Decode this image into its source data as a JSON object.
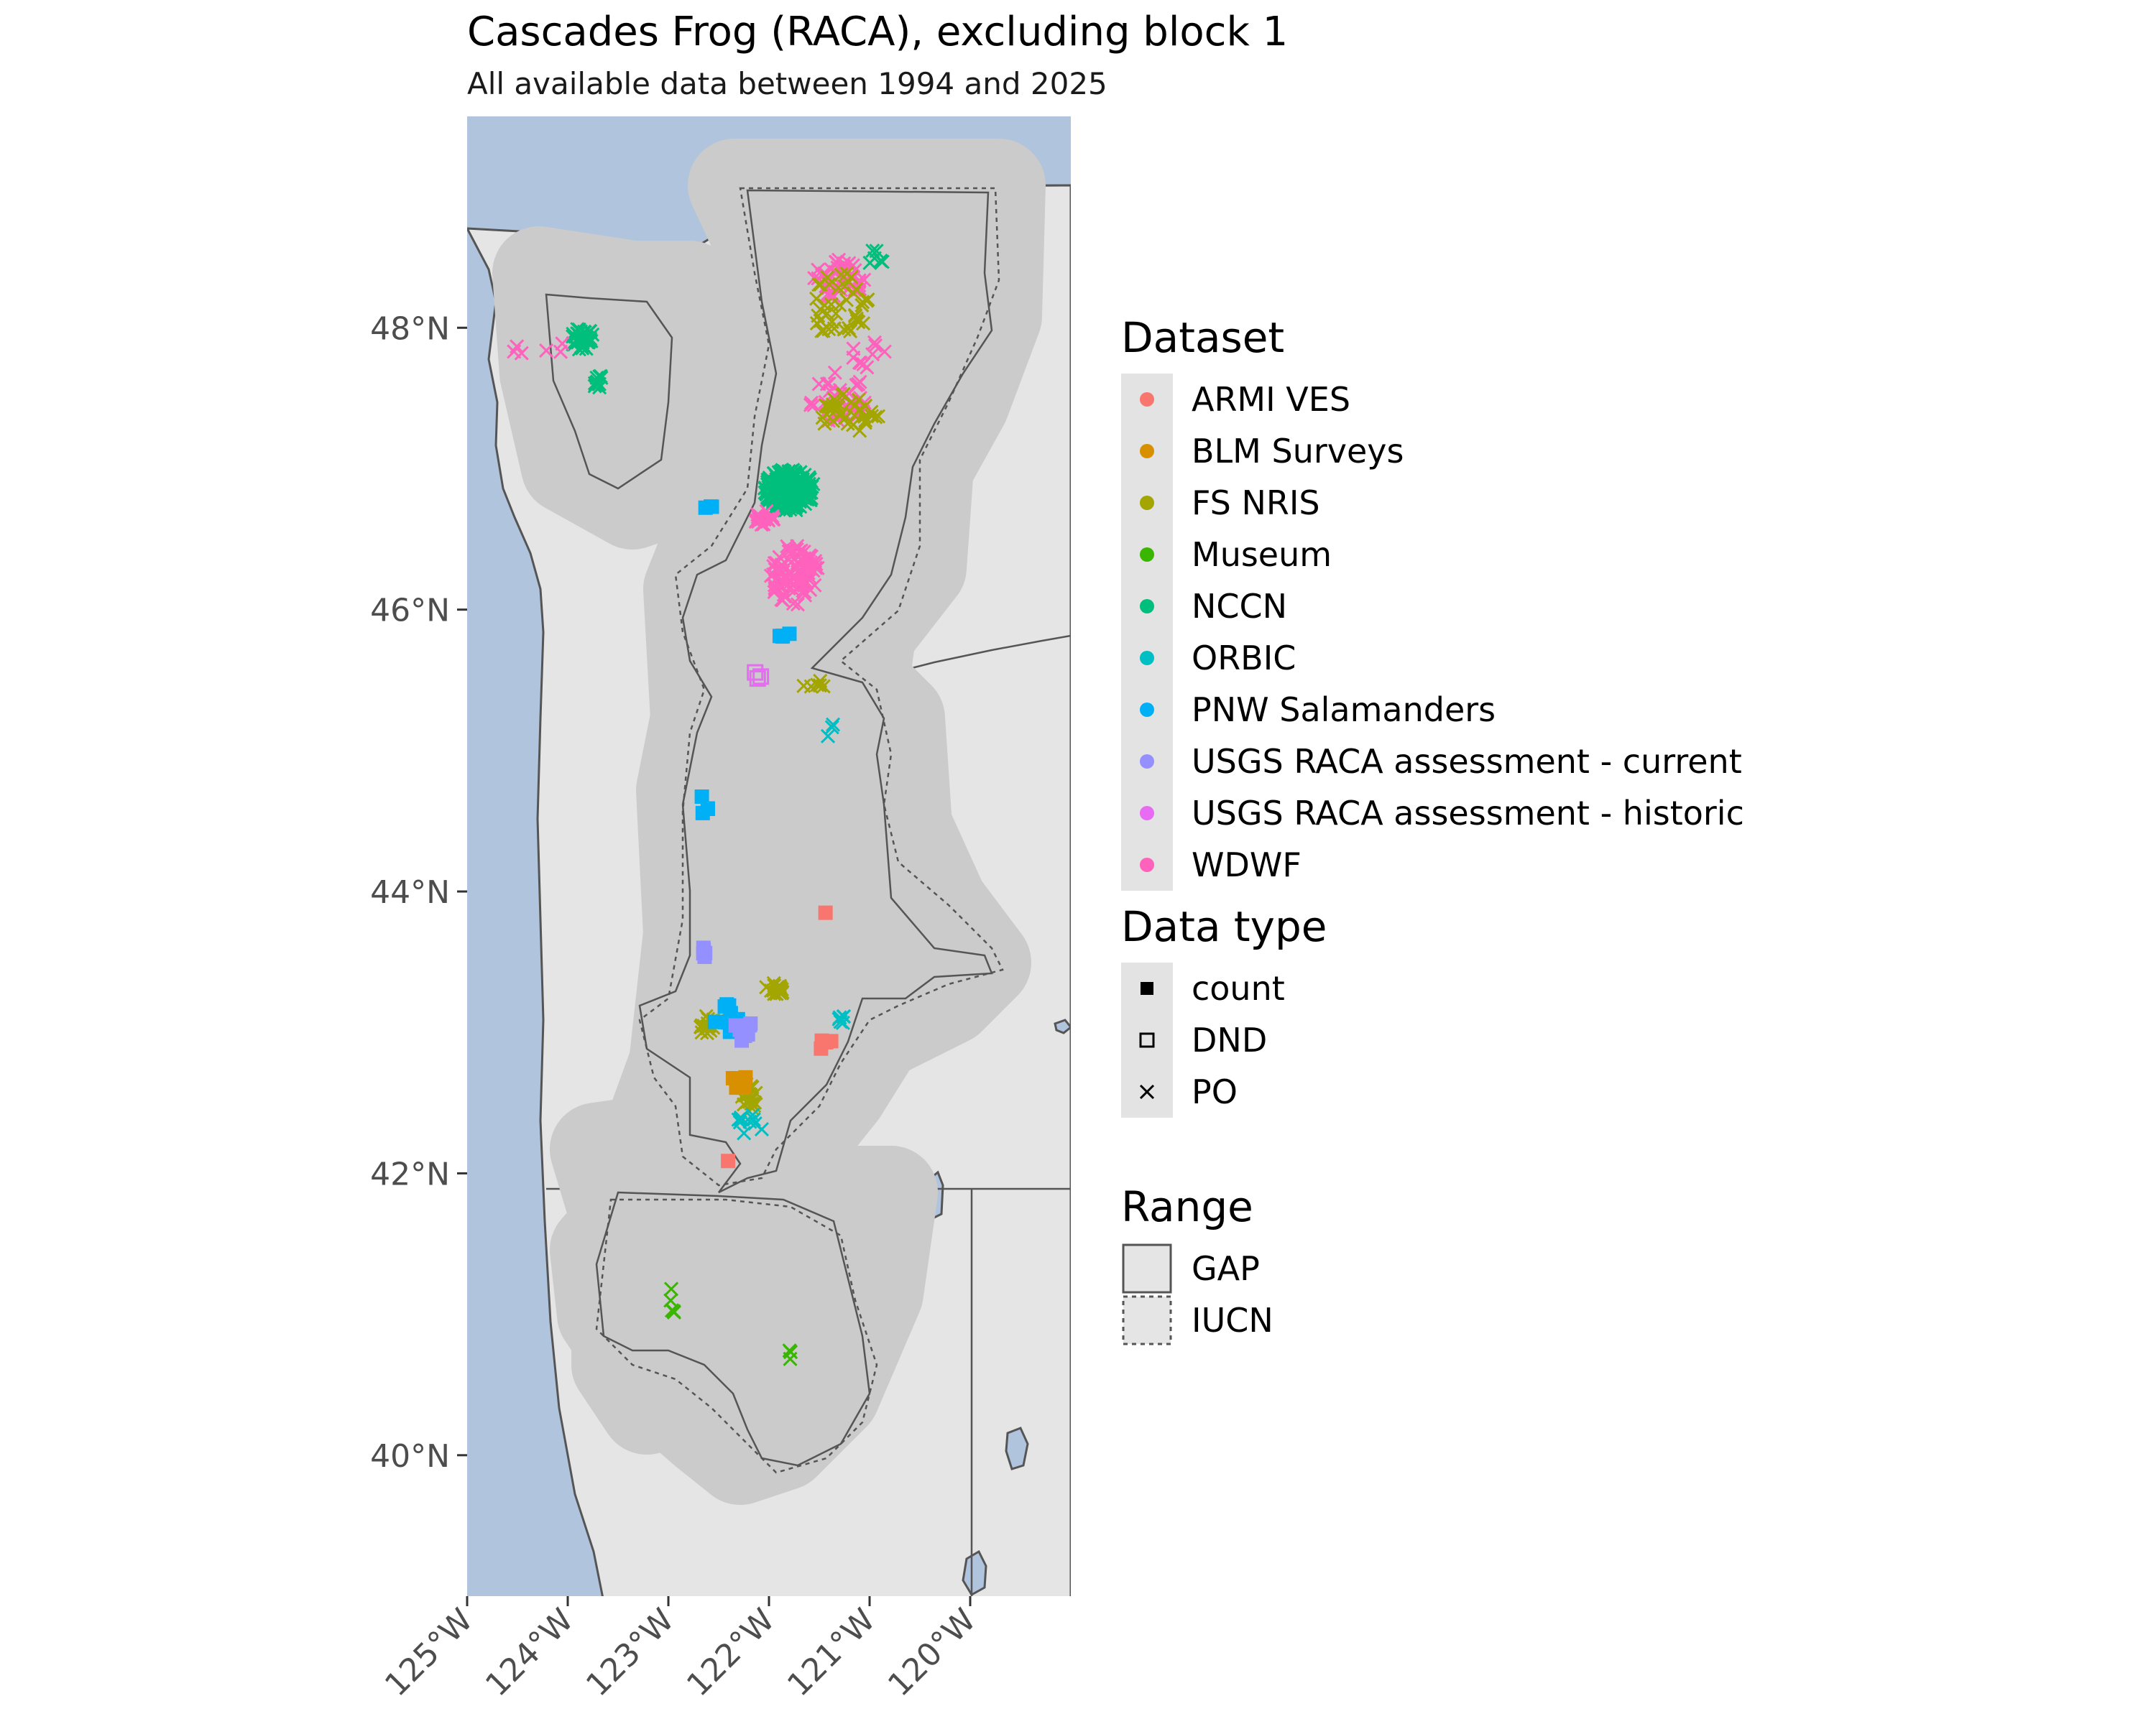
{
  "title": "Cascades Frog (RACA), excluding block 1",
  "subtitle": "All available data between 1994 and 2025",
  "colors": {
    "water": "#b0c4de",
    "land": "#e5e5e5",
    "range_fill": "#cbcbcb",
    "border": "#555555",
    "axis_text": "#4d4d4d",
    "legend_key_bg": "#e3e3e3"
  },
  "axes": {
    "lon_range": [
      -125,
      -119
    ],
    "lat_range": [
      39,
      49.5
    ],
    "x_ticks": [
      {
        "value": -125,
        "label": "125°W"
      },
      {
        "value": -124,
        "label": "124°W"
      },
      {
        "value": -123,
        "label": "123°W"
      },
      {
        "value": -122,
        "label": "122°W"
      },
      {
        "value": -121,
        "label": "121°W"
      },
      {
        "value": -120,
        "label": "120°W"
      }
    ],
    "y_ticks": [
      {
        "value": 48,
        "label": "48°N"
      },
      {
        "value": 46,
        "label": "46°N"
      },
      {
        "value": 44,
        "label": "44°N"
      },
      {
        "value": 42,
        "label": "42°N"
      },
      {
        "value": 40,
        "label": "40°N"
      }
    ]
  },
  "legend": {
    "dataset": {
      "title": "Dataset",
      "items": [
        {
          "label": "ARMI VES",
          "color": "#f8766d"
        },
        {
          "label": "BLM Surveys",
          "color": "#d89000"
        },
        {
          "label": "FS NRIS",
          "color": "#a3a500"
        },
        {
          "label": "Museum",
          "color": "#39b600"
        },
        {
          "label": "NCCN",
          "color": "#00bf7d"
        },
        {
          "label": "ORBIC",
          "color": "#00bfc4"
        },
        {
          "label": "PNW Salamanders",
          "color": "#00b0f6"
        },
        {
          "label": "USGS RACA assessment - current",
          "color": "#9590ff"
        },
        {
          "label": "USGS RACA assessment - historic",
          "color": "#e76bf3"
        },
        {
          "label": "WDWF",
          "color": "#ff62bc"
        }
      ]
    },
    "data_type": {
      "title": "Data type",
      "items": [
        {
          "label": "count",
          "shape": "filled-square"
        },
        {
          "label": "DND",
          "shape": "open-square"
        },
        {
          "label": "PO",
          "shape": "cross"
        }
      ]
    },
    "range": {
      "title": "Range",
      "items": [
        {
          "label": "GAP",
          "line": "solid"
        },
        {
          "label": "IUCN",
          "line": "dashed"
        }
      ]
    }
  },
  "chart_data": {
    "type": "scatter",
    "x_field": "longitude",
    "y_field": "latitude",
    "title": "Cascades Frog (RACA), excluding block 1",
    "subtitle": "All available data between 1994 and 2025",
    "clusters": [
      {
        "dataset": "NCCN",
        "type": "PO",
        "lon": -121.8,
        "lat": 46.85,
        "spread": [
          0.25,
          0.15
        ],
        "count": 220
      },
      {
        "dataset": "NCCN",
        "type": "PO",
        "lon": -123.85,
        "lat": 47.92,
        "spread": [
          0.12,
          0.08
        ],
        "count": 40
      },
      {
        "dataset": "NCCN",
        "type": "PO",
        "lon": -123.7,
        "lat": 47.62,
        "spread": [
          0.05,
          0.05
        ],
        "count": 12
      },
      {
        "dataset": "NCCN",
        "type": "PO",
        "lon": -120.95,
        "lat": 48.5,
        "spread": [
          0.1,
          0.05
        ],
        "count": 6
      },
      {
        "dataset": "WDWF",
        "type": "PO",
        "lon": -121.3,
        "lat": 48.35,
        "spread": [
          0.25,
          0.15
        ],
        "count": 45
      },
      {
        "dataset": "WDWF",
        "type": "PO",
        "lon": -121.3,
        "lat": 47.5,
        "spread": [
          0.3,
          0.2
        ],
        "count": 35
      },
      {
        "dataset": "WDWF",
        "type": "PO",
        "lon": -121.75,
        "lat": 46.25,
        "spread": [
          0.25,
          0.22
        ],
        "count": 90
      },
      {
        "dataset": "WDWF",
        "type": "PO",
        "lon": -122.05,
        "lat": 46.65,
        "spread": [
          0.1,
          0.05
        ],
        "count": 20
      },
      {
        "dataset": "WDWF",
        "type": "PO",
        "lon": -124.3,
        "lat": 47.85,
        "spread": [
          0.3,
          0.1
        ],
        "count": 6
      },
      {
        "dataset": "WDWF",
        "type": "PO",
        "lon": -121.0,
        "lat": 47.8,
        "spread": [
          0.2,
          0.1
        ],
        "count": 10
      },
      {
        "dataset": "FS NRIS",
        "type": "PO",
        "lon": -121.3,
        "lat": 48.15,
        "spread": [
          0.3,
          0.25
        ],
        "count": 40
      },
      {
        "dataset": "FS NRIS",
        "type": "PO",
        "lon": -121.2,
        "lat": 47.4,
        "spread": [
          0.3,
          0.15
        ],
        "count": 35
      },
      {
        "dataset": "FS NRIS",
        "type": "PO",
        "lon": -121.55,
        "lat": 45.47,
        "spread": [
          0.12,
          0.03
        ],
        "count": 6
      },
      {
        "dataset": "FS NRIS",
        "type": "PO",
        "lon": -121.95,
        "lat": 43.3,
        "spread": [
          0.1,
          0.05
        ],
        "count": 20
      },
      {
        "dataset": "FS NRIS",
        "type": "PO",
        "lon": -122.6,
        "lat": 43.05,
        "spread": [
          0.1,
          0.07
        ],
        "count": 18
      },
      {
        "dataset": "FS NRIS",
        "type": "PO",
        "lon": -122.2,
        "lat": 42.55,
        "spread": [
          0.08,
          0.1
        ],
        "count": 18
      },
      {
        "dataset": "ORBIC",
        "type": "PO",
        "lon": -121.3,
        "lat": 43.1,
        "spread": [
          0.05,
          0.06
        ],
        "count": 6
      },
      {
        "dataset": "ORBIC",
        "type": "PO",
        "lon": -121.4,
        "lat": 45.15,
        "spread": [
          0.04,
          0.1
        ],
        "count": 3
      },
      {
        "dataset": "ORBIC",
        "type": "PO",
        "lon": -122.2,
        "lat": 42.35,
        "spread": [
          0.15,
          0.1
        ],
        "count": 10
      },
      {
        "dataset": "PNW Salamanders",
        "type": "count",
        "lon": -122.4,
        "lat": 43.1,
        "spread": [
          0.15,
          0.1
        ],
        "count": 14
      },
      {
        "dataset": "PNW Salamanders",
        "type": "count",
        "lon": -122.65,
        "lat": 44.6,
        "spread": [
          0.05,
          0.08
        ],
        "count": 4
      },
      {
        "dataset": "PNW Salamanders",
        "type": "count",
        "lon": -122.6,
        "lat": 46.72,
        "spread": [
          0.06,
          0.02
        ],
        "count": 3
      },
      {
        "dataset": "PNW Salamanders",
        "type": "count",
        "lon": -121.85,
        "lat": 45.82,
        "spread": [
          0.08,
          0.02
        ],
        "count": 4
      },
      {
        "dataset": "ARMI VES",
        "type": "count",
        "lon": -121.4,
        "lat": 42.92,
        "spread": [
          0.12,
          0.05
        ],
        "count": 5
      },
      {
        "dataset": "ARMI VES",
        "type": "count",
        "lon": -122.4,
        "lat": 42.1,
        "spread": [
          0.02,
          0.02
        ],
        "count": 1
      },
      {
        "dataset": "ARMI VES",
        "type": "count",
        "lon": -121.45,
        "lat": 43.85,
        "spread": [
          0.02,
          0.02
        ],
        "count": 1
      },
      {
        "dataset": "USGS RACA assessment - current",
        "type": "count",
        "lon": -122.25,
        "lat": 43.0,
        "spread": [
          0.1,
          0.1
        ],
        "count": 10
      },
      {
        "dataset": "USGS RACA assessment - current",
        "type": "count",
        "lon": -122.65,
        "lat": 43.6,
        "spread": [
          0.04,
          0.08
        ],
        "count": 5
      },
      {
        "dataset": "USGS RACA assessment - historic",
        "type": "DND",
        "lon": -122.1,
        "lat": 45.55,
        "spread": [
          0.05,
          0.05
        ],
        "count": 3
      },
      {
        "dataset": "BLM Surveys",
        "type": "count",
        "lon": -122.3,
        "lat": 42.65,
        "spread": [
          0.12,
          0.05
        ],
        "count": 5
      },
      {
        "dataset": "Museum",
        "type": "PO",
        "lon": -122.95,
        "lat": 41.1,
        "spread": [
          0.04,
          0.1
        ],
        "count": 5
      },
      {
        "dataset": "Museum",
        "type": "PO",
        "lon": -121.8,
        "lat": 40.85,
        "spread": [
          0.05,
          0.2
        ],
        "count": 3
      }
    ]
  }
}
